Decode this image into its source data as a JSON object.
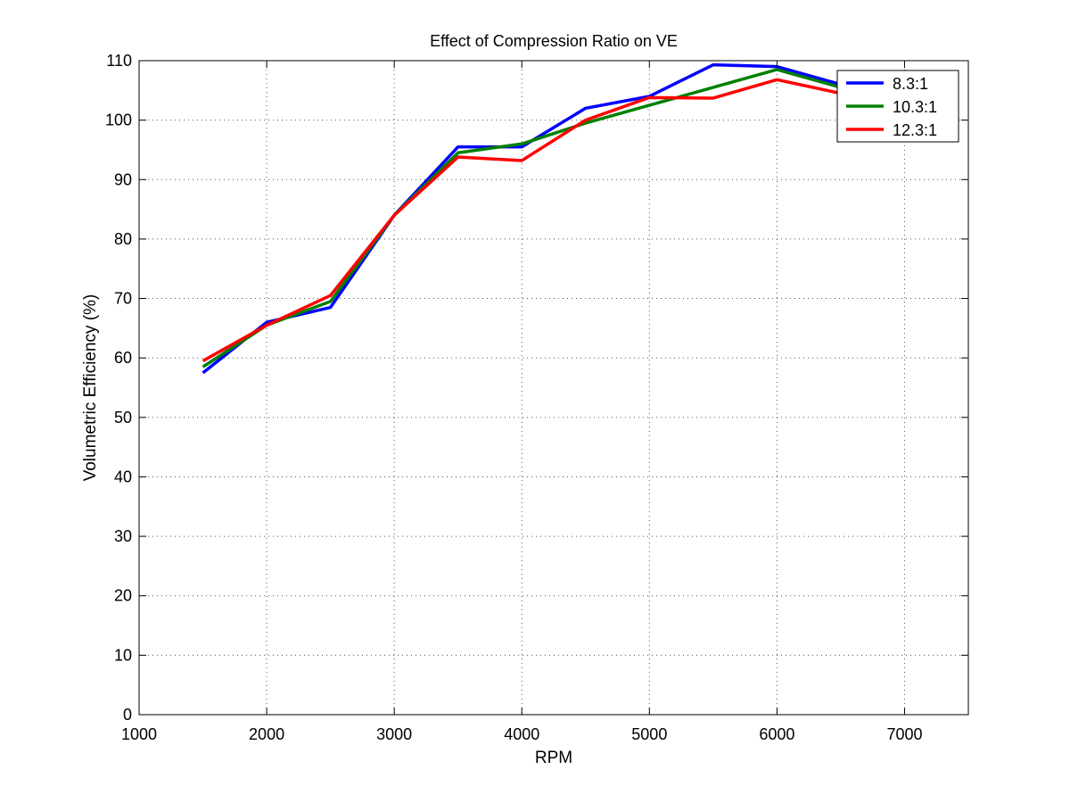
{
  "chart_data": {
    "type": "line",
    "title": "Effect of Compression Ratio on VE",
    "xlabel": "RPM",
    "ylabel": "Volumetric Efficiency (%)",
    "xlim": [
      1000,
      7500
    ],
    "ylim": [
      0,
      110
    ],
    "xticks": [
      1000,
      2000,
      3000,
      4000,
      5000,
      6000,
      7000
    ],
    "yticks": [
      0,
      10,
      20,
      30,
      40,
      50,
      60,
      70,
      80,
      90,
      100,
      110
    ],
    "grid": true,
    "legend_position": "top-right",
    "x": [
      1500,
      2000,
      2500,
      3000,
      3500,
      4000,
      4500,
      5000,
      5500,
      6000,
      6500
    ],
    "series": [
      {
        "name": "8.3:1",
        "color": "#0000ff",
        "values": [
          57.5,
          66.0,
          68.5,
          84.0,
          95.5,
          95.5,
          102.0,
          104.0,
          109.3,
          109.0,
          106.0
        ]
      },
      {
        "name": "10.3:1",
        "color": "#008000",
        "values": [
          58.5,
          65.5,
          69.5,
          84.0,
          94.5,
          96.0,
          99.5,
          102.5,
          105.5,
          108.5,
          105.5
        ]
      },
      {
        "name": "12.3:1",
        "color": "#ff0000",
        "values": [
          59.5,
          65.5,
          70.5,
          84.0,
          93.8,
          93.2,
          100.0,
          103.8,
          103.7,
          106.8,
          104.5
        ]
      }
    ]
  }
}
